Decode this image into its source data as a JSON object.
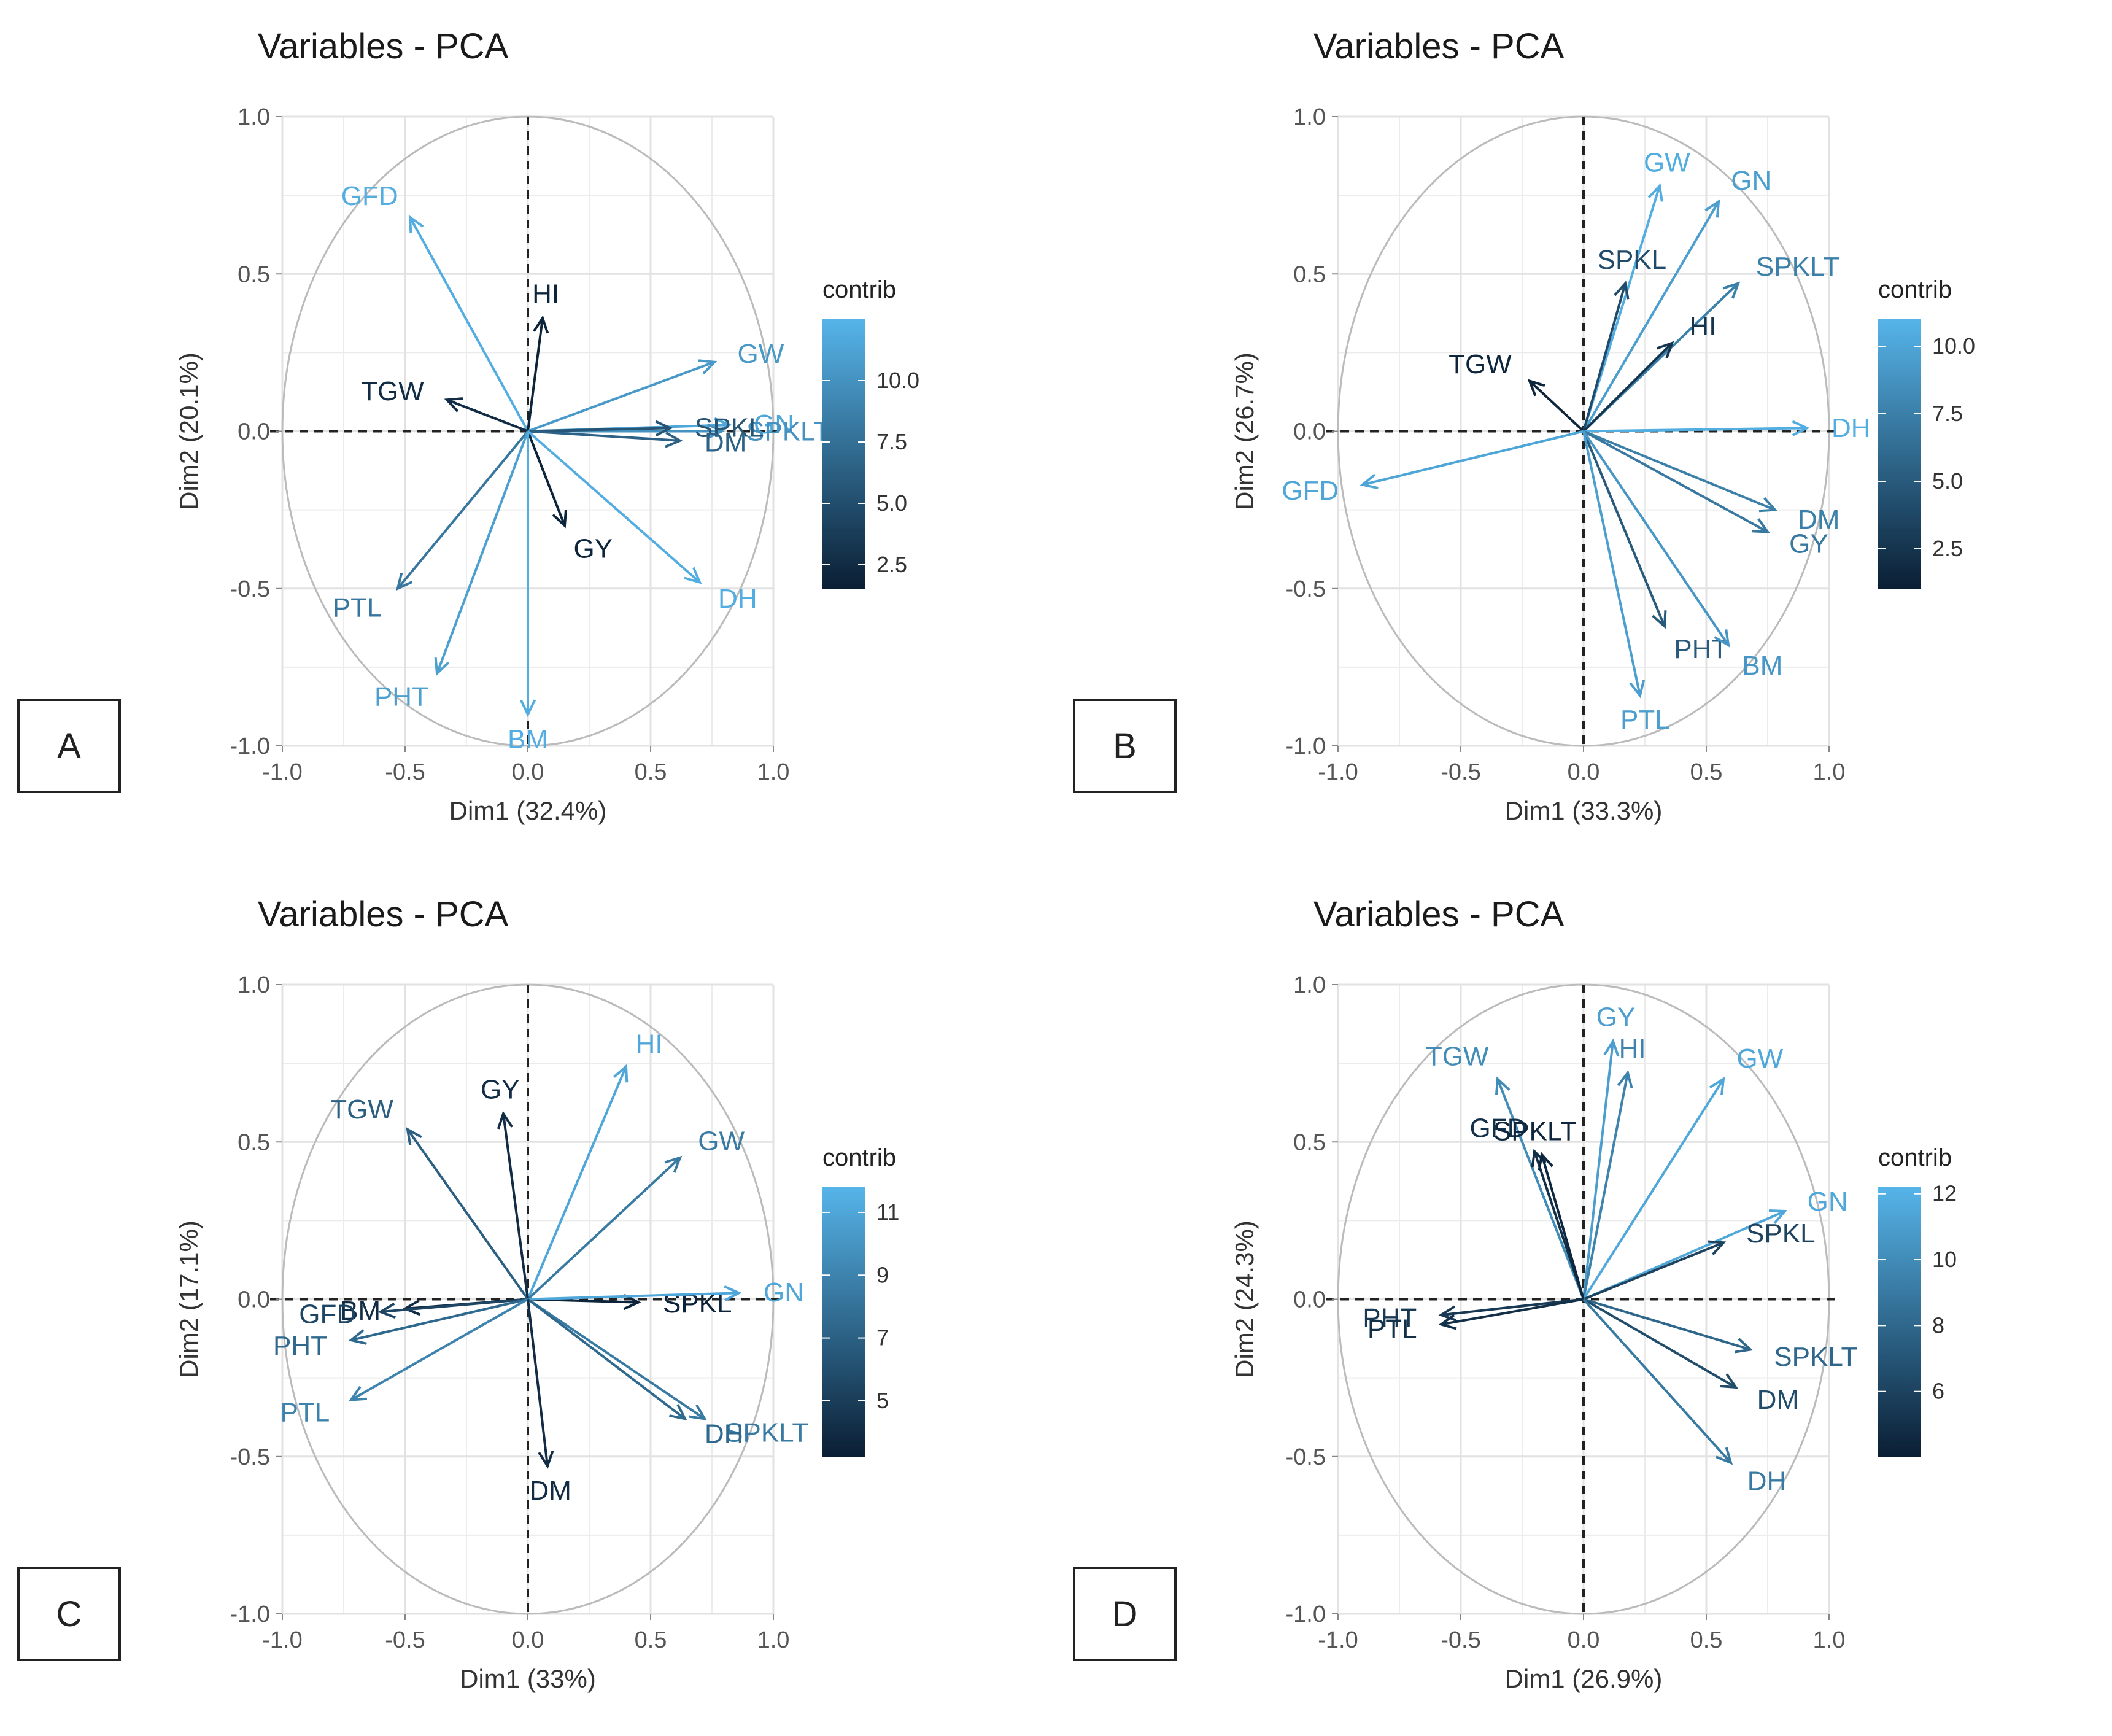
{
  "chart_data": [
    {
      "panel_label": "A",
      "type": "scatter",
      "title": "Variables - PCA",
      "xlabel": "Dim1 (32.4%)",
      "ylabel": "Dim2 (20.1%)",
      "xlim": [
        -1.0,
        1.0
      ],
      "ylim": [
        -1.0,
        1.0
      ],
      "xticks": [
        "-1.0",
        "-0.5",
        "0.0",
        "0.5",
        "1.0"
      ],
      "yticks": [
        "-1.0",
        "-0.5",
        "0.0",
        "0.5",
        "1.0"
      ],
      "legend": {
        "title": "contrib",
        "min": 1.5,
        "max": 12.5,
        "ticks": [
          "2.5",
          "5.0",
          "7.5",
          "10.0"
        ],
        "tick_values": [
          2.5,
          5.0,
          7.5,
          10.0
        ]
      },
      "vectors": [
        {
          "name": "GFD",
          "x": -0.48,
          "y": 0.68,
          "contrib": 12.0
        },
        {
          "name": "HI",
          "x": 0.06,
          "y": 0.36,
          "contrib": 2.0
        },
        {
          "name": "TGW",
          "x": -0.33,
          "y": 0.1,
          "contrib": 2.5
        },
        {
          "name": "GW",
          "x": 0.76,
          "y": 0.22,
          "contrib": 10.5
        },
        {
          "name": "GN",
          "x": 0.82,
          "y": 0.02,
          "contrib": 11.5
        },
        {
          "name": "SPKLT",
          "x": 0.79,
          "y": 0.0,
          "contrib": 10.0
        },
        {
          "name": "SPKL",
          "x": 0.58,
          "y": 0.01,
          "contrib": 5.5
        },
        {
          "name": "DM",
          "x": 0.62,
          "y": -0.03,
          "contrib": 6.5
        },
        {
          "name": "GY",
          "x": 0.15,
          "y": -0.3,
          "contrib": 2.0
        },
        {
          "name": "DH",
          "x": 0.7,
          "y": -0.48,
          "contrib": 12.0
        },
        {
          "name": "PTL",
          "x": -0.53,
          "y": -0.5,
          "contrib": 8.0
        },
        {
          "name": "PHT",
          "x": -0.37,
          "y": -0.77,
          "contrib": 11.0
        },
        {
          "name": "BM",
          "x": 0.0,
          "y": -0.9,
          "contrib": 12.0
        }
      ]
    },
    {
      "panel_label": "B",
      "type": "scatter",
      "title": "Variables - PCA",
      "xlabel": "Dim1 (33.3%)",
      "ylabel": "Dim2 (26.7%)",
      "xlim": [
        -1.0,
        1.0
      ],
      "ylim": [
        -1.0,
        1.0
      ],
      "xticks": [
        "-1.0",
        "-0.5",
        "0.0",
        "0.5",
        "1.0"
      ],
      "yticks": [
        "-1.0",
        "-0.5",
        "0.0",
        "0.5",
        "1.0"
      ],
      "legend": {
        "title": "contrib",
        "min": 1.0,
        "max": 11.0,
        "ticks": [
          "2.5",
          "5.0",
          "7.5",
          "10.0"
        ],
        "tick_values": [
          2.5,
          5.0,
          7.5,
          10.0
        ]
      },
      "vectors": [
        {
          "name": "GW",
          "x": 0.31,
          "y": 0.78,
          "contrib": 10.5
        },
        {
          "name": "GN",
          "x": 0.55,
          "y": 0.73,
          "contrib": 9.5
        },
        {
          "name": "SPKL",
          "x": 0.17,
          "y": 0.47,
          "contrib": 4.0
        },
        {
          "name": "SPKLT",
          "x": 0.63,
          "y": 0.47,
          "contrib": 7.5
        },
        {
          "name": "HI",
          "x": 0.36,
          "y": 0.28,
          "contrib": 2.5
        },
        {
          "name": "TGW",
          "x": -0.22,
          "y": 0.16,
          "contrib": 1.5
        },
        {
          "name": "DH",
          "x": 0.91,
          "y": 0.01,
          "contrib": 10.5
        },
        {
          "name": "GFD",
          "x": -0.9,
          "y": -0.17,
          "contrib": 10.0
        },
        {
          "name": "DM",
          "x": 0.78,
          "y": -0.25,
          "contrib": 7.5
        },
        {
          "name": "GY",
          "x": 0.75,
          "y": -0.32,
          "contrib": 7.0
        },
        {
          "name": "PHT",
          "x": 0.33,
          "y": -0.62,
          "contrib": 5.0
        },
        {
          "name": "BM",
          "x": 0.59,
          "y": -0.68,
          "contrib": 9.0
        },
        {
          "name": "PTL",
          "x": 0.23,
          "y": -0.84,
          "contrib": 9.5
        }
      ]
    },
    {
      "panel_label": "C",
      "type": "scatter",
      "title": "Variables - PCA",
      "xlabel": "Dim1 (33%)",
      "ylabel": "Dim2 (17.1%)",
      "xlim": [
        -1.0,
        1.0
      ],
      "ylim": [
        -1.0,
        1.0
      ],
      "xticks": [
        "-1.0",
        "-0.5",
        "0.0",
        "0.5",
        "1.0"
      ],
      "yticks": [
        "-1.0",
        "-0.5",
        "0.0",
        "0.5",
        "1.0"
      ],
      "legend": {
        "title": "contrib",
        "min": 3.2,
        "max": 11.8,
        "ticks": [
          "5",
          "7",
          "9",
          "11"
        ],
        "tick_values": [
          5,
          7,
          9,
          11
        ]
      },
      "vectors": [
        {
          "name": "HI",
          "x": 0.4,
          "y": 0.74,
          "contrib": 11.0
        },
        {
          "name": "GW",
          "x": 0.62,
          "y": 0.45,
          "contrib": 8.5
        },
        {
          "name": "TGW",
          "x": -0.49,
          "y": 0.54,
          "contrib": 7.0
        },
        {
          "name": "GY",
          "x": -0.1,
          "y": 0.59,
          "contrib": 4.0
        },
        {
          "name": "SPKL",
          "x": 0.45,
          "y": -0.01,
          "contrib": 3.5
        },
        {
          "name": "GN",
          "x": 0.86,
          "y": 0.02,
          "contrib": 11.0
        },
        {
          "name": "BM",
          "x": -0.5,
          "y": -0.03,
          "contrib": 4.0
        },
        {
          "name": "GFD",
          "x": -0.6,
          "y": -0.04,
          "contrib": 5.5
        },
        {
          "name": "PHT",
          "x": -0.72,
          "y": -0.13,
          "contrib": 7.5
        },
        {
          "name": "PTL",
          "x": -0.72,
          "y": -0.32,
          "contrib": 9.0
        },
        {
          "name": "SPKLT",
          "x": 0.72,
          "y": -0.38,
          "contrib": 8.5
        },
        {
          "name": "DH",
          "x": 0.64,
          "y": -0.38,
          "contrib": 7.5
        },
        {
          "name": "DM",
          "x": 0.08,
          "y": -0.53,
          "contrib": 4.0
        }
      ]
    },
    {
      "panel_label": "D",
      "type": "scatter",
      "title": "Variables - PCA",
      "xlabel": "Dim1 (26.9%)",
      "ylabel": "Dim2 (24.3%)",
      "xlim": [
        -1.0,
        1.0
      ],
      "ylim": [
        -1.0,
        1.0
      ],
      "xticks": [
        "-1.0",
        "-0.5",
        "0.0",
        "0.5",
        "1.0"
      ],
      "yticks": [
        "-1.0",
        "-0.5",
        "0.0",
        "0.5",
        "1.0"
      ],
      "legend": {
        "title": "contrib",
        "min": 4.0,
        "max": 12.2,
        "ticks": [
          "6",
          "8",
          "10",
          "12"
        ],
        "tick_values": [
          6,
          8,
          10,
          12
        ]
      },
      "vectors": [
        {
          "name": "GY",
          "x": 0.12,
          "y": 0.82,
          "contrib": 11.0
        },
        {
          "name": "HI",
          "x": 0.18,
          "y": 0.72,
          "contrib": 9.5
        },
        {
          "name": "GW",
          "x": 0.57,
          "y": 0.7,
          "contrib": 11.5
        },
        {
          "name": "TGW",
          "x": -0.35,
          "y": 0.7,
          "contrib": 10.0
        },
        {
          "name": "GFD",
          "x": -0.2,
          "y": 0.47,
          "contrib": 5.0
        },
        {
          "name": "SPKLT",
          "x": -0.17,
          "y": 0.46,
          "contrib": 4.5
        },
        {
          "name": "GN",
          "x": 0.82,
          "y": 0.28,
          "contrib": 11.5
        },
        {
          "name": "SPKL",
          "x": 0.57,
          "y": 0.18,
          "contrib": 6.0
        },
        {
          "name": "PHT",
          "x": -0.58,
          "y": -0.05,
          "contrib": 5.5
        },
        {
          "name": "PTL",
          "x": -0.58,
          "y": -0.08,
          "contrib": 5.0
        },
        {
          "name": "SPKLT",
          "x": 0.68,
          "y": -0.16,
          "contrib": 8.0
        },
        {
          "name": "DM",
          "x": 0.62,
          "y": -0.28,
          "contrib": 6.5
        },
        {
          "name": "DH",
          "x": 0.6,
          "y": -0.52,
          "contrib": 9.0
        }
      ]
    }
  ],
  "figure": {
    "colors": {
      "low": "#0a1e33",
      "high": "#56b4e9",
      "axis_dash": "#222222",
      "circle": "#bbbbbb",
      "grid": "#ececec"
    }
  }
}
